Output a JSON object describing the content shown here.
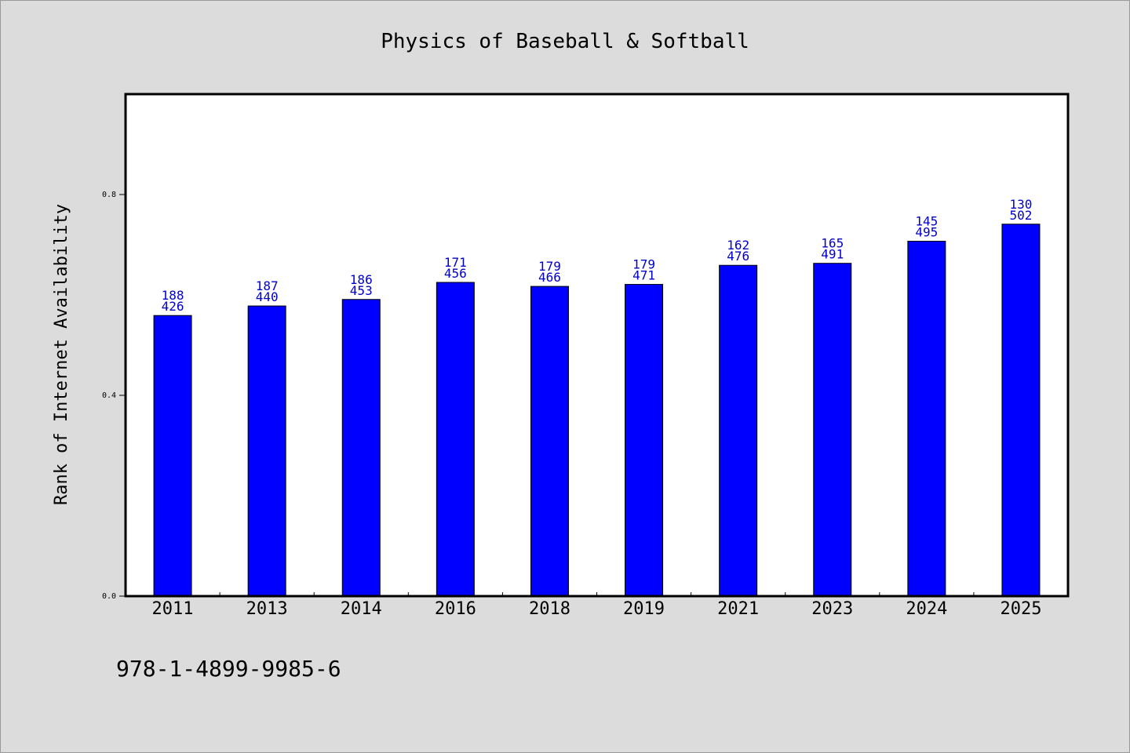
{
  "chart_data": {
    "type": "bar",
    "title": "Physics of Baseball & Softball",
    "xlabel": "",
    "ylabel": "Rank of Internet Availability",
    "footer": "978-1-4899-9985-6",
    "categories": [
      "2011",
      "2013",
      "2014",
      "2016",
      "2018",
      "2019",
      "2021",
      "2023",
      "2024",
      "2025"
    ],
    "values": [
      0.559,
      0.578,
      0.591,
      0.625,
      0.617,
      0.621,
      0.659,
      0.663,
      0.707,
      0.741
    ],
    "bar_labels_top": [
      "188",
      "187",
      "186",
      "171",
      "179",
      "179",
      "162",
      "165",
      "145",
      "130"
    ],
    "bar_labels_bottom": [
      "426",
      "440",
      "453",
      "456",
      "466",
      "471",
      "476",
      "491",
      "495",
      "502"
    ],
    "yticks": [
      "0.0",
      "0.4",
      "0.8"
    ],
    "ylim": [
      0,
      1.0
    ],
    "grid": false,
    "legend": "none",
    "colors": {
      "bar": "#0000ff",
      "bar_edge": "#000000",
      "label": "#0000cc",
      "plot_bg": "#ffffff",
      "figure_bg": "#dcdcdc"
    }
  }
}
